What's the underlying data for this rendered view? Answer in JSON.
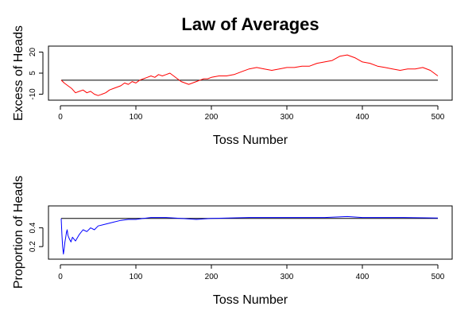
{
  "title": "Law of Averages",
  "chart_data": [
    {
      "type": "line",
      "ylabel": "Excess of Heads",
      "xlabel": "Toss Number",
      "xlim": [
        0,
        500
      ],
      "ylim": [
        -12,
        22
      ],
      "xticks": [
        0,
        100,
        200,
        300,
        400,
        500
      ],
      "yticks": [
        -10,
        5,
        20
      ],
      "grid": false,
      "reference_line": 0,
      "series": [
        {
          "color": "#ff0000",
          "x": [
            1,
            5,
            10,
            15,
            20,
            25,
            30,
            35,
            40,
            45,
            50,
            55,
            60,
            65,
            70,
            75,
            80,
            85,
            90,
            95,
            100,
            105,
            110,
            115,
            120,
            125,
            130,
            135,
            140,
            145,
            150,
            155,
            160,
            165,
            170,
            175,
            180,
            185,
            190,
            195,
            200,
            210,
            220,
            230,
            240,
            250,
            260,
            270,
            280,
            290,
            300,
            310,
            320,
            330,
            340,
            350,
            360,
            370,
            380,
            390,
            400,
            410,
            420,
            430,
            440,
            450,
            460,
            470,
            480,
            490,
            500
          ],
          "values": [
            0,
            -2,
            -4,
            -6,
            -9,
            -8,
            -7,
            -9,
            -8,
            -10,
            -11,
            -10,
            -9,
            -7,
            -6,
            -5,
            -4,
            -2,
            -3,
            -1,
            -2,
            0,
            1,
            2,
            3,
            2,
            4,
            3,
            4,
            5,
            3,
            1,
            -1,
            -2,
            -3,
            -2,
            -1,
            0,
            1,
            1,
            2,
            3,
            3,
            4,
            6,
            8,
            9,
            8,
            7,
            8,
            9,
            9,
            10,
            10,
            12,
            13,
            14,
            17,
            18,
            16,
            13,
            12,
            10,
            9,
            8,
            7,
            8,
            8,
            9,
            7,
            3
          ]
        }
      ]
    },
    {
      "type": "line",
      "ylabel": "Proportion of Heads",
      "xlabel": "Toss Number",
      "xlim": [
        0,
        500
      ],
      "ylim": [
        0.1,
        0.6
      ],
      "xticks": [
        0,
        100,
        200,
        300,
        400,
        500
      ],
      "yticks": [
        0.2,
        0.4
      ],
      "grid": false,
      "reference_line": 0.5,
      "series": [
        {
          "color": "#0000ff",
          "x": [
            1,
            2,
            3,
            4,
            5,
            6,
            7,
            8,
            9,
            10,
            12,
            14,
            16,
            18,
            20,
            25,
            30,
            35,
            40,
            45,
            50,
            60,
            70,
            80,
            90,
            100,
            110,
            120,
            140,
            160,
            180,
            200,
            250,
            300,
            350,
            380,
            400,
            450,
            500
          ],
          "values": [
            0.5,
            0.33,
            0.2,
            0.12,
            0.18,
            0.25,
            0.3,
            0.35,
            0.38,
            0.32,
            0.28,
            0.25,
            0.3,
            0.28,
            0.26,
            0.33,
            0.38,
            0.36,
            0.4,
            0.38,
            0.42,
            0.44,
            0.46,
            0.48,
            0.49,
            0.49,
            0.5,
            0.51,
            0.51,
            0.5,
            0.49,
            0.5,
            0.51,
            0.51,
            0.51,
            0.52,
            0.51,
            0.51,
            0.505
          ]
        }
      ]
    }
  ]
}
